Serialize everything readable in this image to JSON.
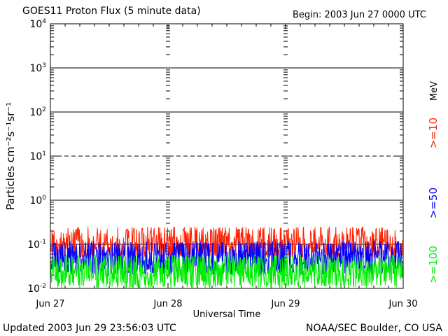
{
  "title": "GOES11 Proton Flux (5 minute data)",
  "begin": "Begin: 2003 Jun 27 0000 UTC",
  "updated": "Updated 2003 Jun 29 23:56:03 UTC",
  "credit": "NOAA/SEC Boulder, CO USA",
  "chart_data": {
    "type": "line",
    "title": "GOES11 Proton Flux (5 minute data)",
    "xlabel": "Universal Time",
    "ylabel": "Particles cm⁻²s⁻¹sr⁻¹",
    "yscale": "log",
    "ylim": [
      0.01,
      10000
    ],
    "xlim_days": [
      0,
      3
    ],
    "x_ticks": [
      "Jun 27",
      "Jun 28",
      "Jun 29",
      "Jun 30"
    ],
    "y_ticks": [
      {
        "base": "10",
        "exp": "-2",
        "value": 0.01
      },
      {
        "base": "10",
        "exp": "-1",
        "value": 0.1
      },
      {
        "base": "10",
        "exp": "0",
        "value": 1
      },
      {
        "base": "10",
        "exp": "1",
        "value": 10
      },
      {
        "base": "10",
        "exp": "2",
        "value": 100
      },
      {
        "base": "10",
        "exp": "3",
        "value": 1000
      },
      {
        "base": "10",
        "exp": "4",
        "value": 10000
      }
    ],
    "threshold_lines": [
      {
        "value": 0.1,
        "style": "solid"
      },
      {
        "value": 1,
        "style": "solid"
      },
      {
        "value": 10,
        "style": "dashed"
      },
      {
        "value": 100,
        "style": "solid"
      },
      {
        "value": 1000,
        "style": "solid"
      }
    ],
    "units_label": "MeV",
    "series": [
      {
        "name": ">=10",
        "color": "#ff2000",
        "typical": 0.1,
        "range": [
          0.05,
          0.25
        ]
      },
      {
        "name": ">=50",
        "color": "#0000ff",
        "typical": 0.05,
        "range": [
          0.02,
          0.12
        ]
      },
      {
        "name": ">=100",
        "color": "#00ee00",
        "typical": 0.025,
        "range": [
          0.01,
          0.06
        ]
      }
    ]
  }
}
